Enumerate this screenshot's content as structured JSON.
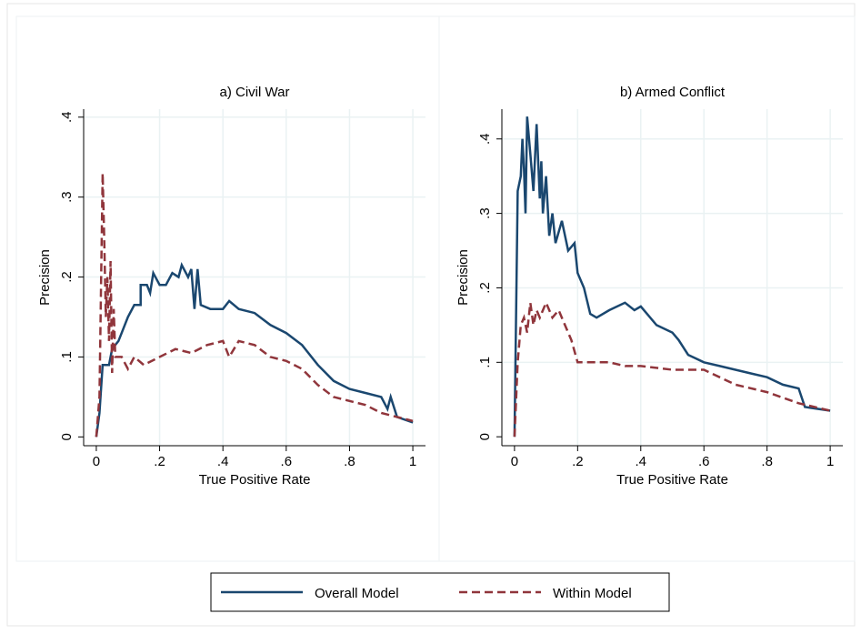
{
  "chart_data": [
    {
      "type": "line",
      "title": "a) Civil War",
      "xlabel": "True Positive Rate",
      "ylabel": "Precision",
      "xlim": [
        -0.04,
        1.04
      ],
      "ylim": [
        -0.011,
        0.41
      ],
      "grid": true,
      "xticks": [
        0,
        {
          "value": 0.2,
          "label": ".2"
        },
        {
          "value": 0.4,
          "label": ".4"
        },
        {
          "value": 0.6,
          "label": ".6"
        },
        {
          "value": 0.8,
          "label": ".8"
        },
        1
      ],
      "yticks": [
        0,
        {
          "value": 0.1,
          "label": ".1"
        },
        {
          "value": 0.2,
          "label": ".2"
        },
        {
          "value": 0.3,
          "label": ".3"
        },
        {
          "value": 0.4,
          "label": ".4"
        }
      ],
      "series": [
        {
          "name": "Overall Model",
          "color": "#1a476f",
          "dash": false,
          "x": [
            0,
            0.01,
            0.02,
            0.04,
            0.05,
            0.07,
            0.08,
            0.1,
            0.12,
            0.14,
            0.14,
            0.16,
            0.17,
            0.18,
            0.2,
            0.22,
            0.24,
            0.26,
            0.27,
            0.29,
            0.3,
            0.31,
            0.32,
            0.33,
            0.36,
            0.4,
            0.42,
            0.45,
            0.5,
            0.55,
            0.6,
            0.65,
            0.7,
            0.75,
            0.8,
            0.85,
            0.9,
            0.92,
            0.93,
            0.95,
            1
          ],
          "values": [
            0,
            0.03,
            0.09,
            0.09,
            0.11,
            0.12,
            0.13,
            0.15,
            0.165,
            0.165,
            0.19,
            0.19,
            0.18,
            0.205,
            0.19,
            0.19,
            0.205,
            0.2,
            0.215,
            0.2,
            0.21,
            0.16,
            0.21,
            0.165,
            0.16,
            0.16,
            0.17,
            0.16,
            0.155,
            0.14,
            0.13,
            0.115,
            0.09,
            0.07,
            0.06,
            0.055,
            0.05,
            0.035,
            0.05,
            0.025,
            0.018
          ]
        },
        {
          "name": "Within Model",
          "color": "#90353b",
          "dash": true,
          "x": [
            0,
            0.01,
            0.02,
            0.025,
            0.03,
            0.035,
            0.04,
            0.045,
            0.05,
            0.055,
            0.06,
            0.08,
            0.1,
            0.12,
            0.15,
            0.2,
            0.25,
            0.3,
            0.35,
            0.4,
            0.42,
            0.45,
            0.5,
            0.55,
            0.6,
            0.65,
            0.7,
            0.75,
            0.8,
            0.85,
            0.9,
            0.95,
            1
          ],
          "values": [
            0,
            0.05,
            0.33,
            0.25,
            0.15,
            0.2,
            0.12,
            0.22,
            0.08,
            0.16,
            0.1,
            0.1,
            0.085,
            0.1,
            0.09,
            0.1,
            0.11,
            0.105,
            0.115,
            0.12,
            0.1,
            0.12,
            0.115,
            0.1,
            0.095,
            0.085,
            0.065,
            0.05,
            0.045,
            0.04,
            0.03,
            0.025,
            0.02
          ]
        }
      ]
    },
    {
      "type": "line",
      "title": "b) Armed Conflict",
      "xlabel": "True Positive Rate",
      "ylabel": "Precision",
      "xlim": [
        -0.04,
        1.04
      ],
      "ylim": [
        -0.012,
        0.44
      ],
      "grid": true,
      "xticks": [
        0,
        {
          "value": 0.2,
          "label": ".2"
        },
        {
          "value": 0.4,
          "label": ".4"
        },
        {
          "value": 0.6,
          "label": ".6"
        },
        {
          "value": 0.8,
          "label": ".8"
        },
        1
      ],
      "yticks": [
        0,
        {
          "value": 0.1,
          "label": ".1"
        },
        {
          "value": 0.2,
          "label": ".2"
        },
        {
          "value": 0.3,
          "label": ".3"
        },
        {
          "value": 0.4,
          "label": ".4"
        }
      ],
      "series": [
        {
          "color": "#1a476f",
          "dash": false,
          "x": [
            0,
            0.01,
            0.02,
            0.025,
            0.03,
            0.035,
            0.04,
            0.05,
            0.06,
            0.07,
            0.08,
            0.085,
            0.09,
            0.1,
            0.11,
            0.12,
            0.13,
            0.15,
            0.17,
            0.19,
            0.2,
            0.22,
            0.24,
            0.26,
            0.3,
            0.35,
            0.38,
            0.4,
            0.45,
            0.5,
            0.52,
            0.55,
            0.6,
            0.65,
            0.7,
            0.75,
            0.8,
            0.85,
            0.9,
            0.92,
            1
          ],
          "values": [
            0,
            0.33,
            0.35,
            0.4,
            0.36,
            0.3,
            0.43,
            0.38,
            0.33,
            0.42,
            0.32,
            0.37,
            0.3,
            0.35,
            0.27,
            0.3,
            0.26,
            0.29,
            0.25,
            0.26,
            0.22,
            0.2,
            0.165,
            0.16,
            0.17,
            0.18,
            0.17,
            0.175,
            0.15,
            0.14,
            0.13,
            0.11,
            0.1,
            0.095,
            0.09,
            0.085,
            0.08,
            0.07,
            0.065,
            0.04,
            0.035
          ]
        },
        {
          "color": "#90353b",
          "dash": true,
          "x": [
            0,
            0.01,
            0.02,
            0.03,
            0.04,
            0.05,
            0.06,
            0.07,
            0.08,
            0.1,
            0.12,
            0.14,
            0.16,
            0.18,
            0.2,
            0.25,
            0.3,
            0.35,
            0.4,
            0.5,
            0.6,
            0.7,
            0.8,
            0.9,
            1
          ],
          "values": [
            0,
            0.1,
            0.15,
            0.16,
            0.14,
            0.18,
            0.15,
            0.17,
            0.16,
            0.18,
            0.16,
            0.17,
            0.15,
            0.13,
            0.1,
            0.1,
            0.1,
            0.095,
            0.095,
            0.09,
            0.09,
            0.07,
            0.06,
            0.045,
            0.035
          ]
        }
      ]
    }
  ]
}
